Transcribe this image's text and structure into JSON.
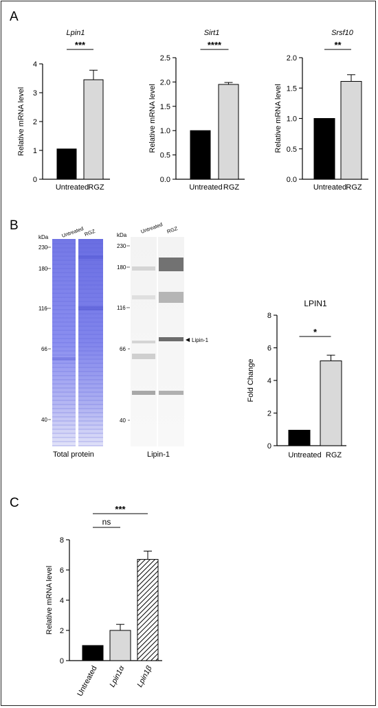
{
  "panels": {
    "a": "A",
    "b": "B",
    "c": "C"
  },
  "chart_data": [
    {
      "type": "bar",
      "title": "Lpin1",
      "ylabel": "Relative mRNA level",
      "categories": [
        "Untreated",
        "RGZ"
      ],
      "values": [
        1.05,
        3.45
      ],
      "errors": [
        0,
        0.33
      ],
      "ylim": [
        0,
        4
      ],
      "yticks": [
        "0",
        "1",
        "2",
        "3",
        "4"
      ],
      "significance": [
        {
          "label": "***",
          "from": 0,
          "to": 1
        }
      ],
      "colors": [
        "#000000",
        "#d9d9d9"
      ]
    },
    {
      "type": "bar",
      "title": "Sirt1",
      "ylabel": "Relative mRNA level",
      "categories": [
        "Untreated",
        "RGZ"
      ],
      "values": [
        1.0,
        1.95
      ],
      "errors": [
        0,
        0.04
      ],
      "ylim": [
        0,
        2.5
      ],
      "yticks": [
        "0.0",
        "0.5",
        "1.0",
        "1.5",
        "2.0",
        "2.5"
      ],
      "significance": [
        {
          "label": "****",
          "from": 0,
          "to": 1
        }
      ],
      "colors": [
        "#000000",
        "#d9d9d9"
      ]
    },
    {
      "type": "bar",
      "title": "Srsf10",
      "ylabel": "Relative mRNA level",
      "categories": [
        "Untreated",
        "RGZ"
      ],
      "values": [
        1.0,
        1.61
      ],
      "errors": [
        0,
        0.11
      ],
      "ylim": [
        0,
        2.0
      ],
      "yticks": [
        "0.0",
        "0.5",
        "1.0",
        "1.5",
        "2.0"
      ],
      "significance": [
        {
          "label": "**",
          "from": 0,
          "to": 1
        }
      ],
      "colors": [
        "#000000",
        "#d9d9d9"
      ]
    },
    {
      "type": "bar",
      "title": "LPIN1",
      "ylabel": "Fold Change",
      "categories": [
        "Untreated",
        "RGZ"
      ],
      "values": [
        0.95,
        5.2
      ],
      "errors": [
        0,
        0.35
      ],
      "ylim": [
        0,
        8
      ],
      "yticks": [
        "0",
        "2",
        "4",
        "6",
        "8"
      ],
      "significance": [
        {
          "label": "*",
          "from": 0,
          "to": 1
        }
      ],
      "colors": [
        "#000000",
        "#d9d9d9"
      ]
    },
    {
      "type": "bar",
      "title": "",
      "ylabel": "Relative mRNA level",
      "categories": [
        "Untreated",
        "Lpin1α",
        "Lpin1β"
      ],
      "values": [
        1.0,
        2.0,
        6.7
      ],
      "errors": [
        0,
        0.4,
        0.55
      ],
      "ylim": [
        0,
        8
      ],
      "yticks": [
        "0",
        "2",
        "4",
        "6",
        "8"
      ],
      "significance": [
        {
          "label": "ns",
          "from": 0,
          "to": 1
        },
        {
          "label": "***",
          "from": 0,
          "to": 2
        }
      ],
      "colors": [
        "#000000",
        "#d9d9d9",
        "hatched"
      ]
    }
  ],
  "blots": {
    "total": {
      "kda_label": "kDa",
      "lanes": [
        "Untreated",
        "RGZ"
      ],
      "markers": [
        "230",
        "180",
        "116",
        "66",
        "40"
      ],
      "caption": "Total protein"
    },
    "lipin": {
      "kda_label": "kDa",
      "lanes": [
        "Untreated",
        "RGZ"
      ],
      "markers": [
        "230",
        "180",
        "116",
        "66",
        "40"
      ],
      "band_label": "Lipin-1",
      "caption": "Lipin-1"
    }
  }
}
